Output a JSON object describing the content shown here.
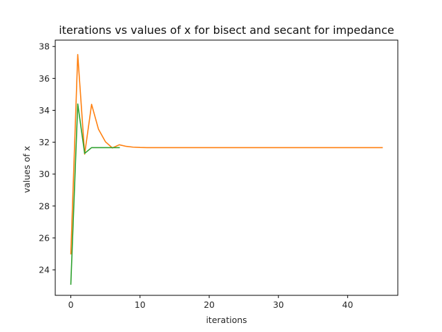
{
  "chart_data": {
    "type": "line",
    "title": "iterations vs values of x for bisect and secant for impedance",
    "xlabel": "iterations",
    "ylabel": "values of x",
    "xlim": [
      -2.25,
      47.25
    ],
    "ylim": [
      22.4,
      38.4
    ],
    "xticks": [
      0,
      10,
      20,
      30,
      40
    ],
    "yticks": [
      24,
      26,
      28,
      30,
      32,
      34,
      36,
      38
    ],
    "grid": false,
    "legend": "none",
    "series": [
      {
        "color": "#ff7f0e",
        "x": [
          0,
          1,
          2,
          3,
          4,
          5,
          6,
          7,
          8,
          9,
          10,
          11,
          12,
          13,
          14,
          15,
          16,
          17,
          18,
          19,
          20,
          21,
          22,
          23,
          24,
          25,
          26,
          27,
          28,
          29,
          30,
          31,
          32,
          33,
          34,
          35,
          36,
          37,
          38,
          39,
          40,
          41,
          42,
          43,
          44,
          45
        ],
        "y": [
          25.0,
          37.5,
          31.25,
          34.375,
          32.81,
          32.03,
          31.64,
          31.84,
          31.74,
          31.69,
          31.67,
          31.66,
          31.66,
          31.66,
          31.66,
          31.66,
          31.66,
          31.66,
          31.66,
          31.66,
          31.66,
          31.66,
          31.66,
          31.66,
          31.66,
          31.66,
          31.66,
          31.66,
          31.66,
          31.66,
          31.66,
          31.66,
          31.66,
          31.66,
          31.66,
          31.66,
          31.66,
          31.66,
          31.66,
          31.66,
          31.66,
          31.66,
          31.66,
          31.66,
          31.66,
          31.66
        ]
      },
      {
        "color": "#2ca02c",
        "x": [
          0,
          1,
          2,
          3,
          4,
          5,
          6,
          7
        ],
        "y": [
          23.1,
          34.4,
          31.3,
          31.66,
          31.66,
          31.66,
          31.66,
          31.66
        ]
      }
    ]
  }
}
